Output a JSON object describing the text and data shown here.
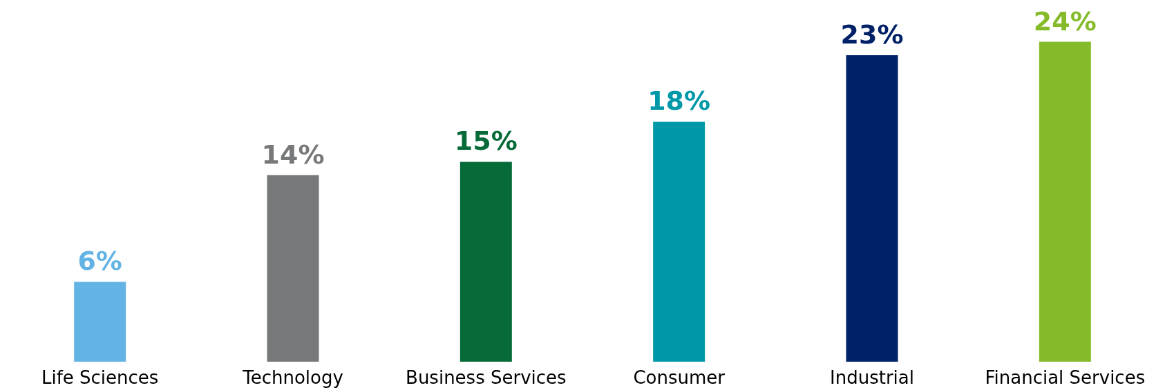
{
  "chart_data": {
    "type": "bar",
    "categories": [
      "Life Sciences",
      "Technology",
      "Business Services",
      "Consumer",
      "Industrial",
      "Financial Services"
    ],
    "values": [
      6,
      14,
      15,
      18,
      23,
      24
    ],
    "colors": [
      "#63b4e4",
      "#76787a",
      "#066b38",
      "#0098a9",
      "#002067",
      "#85bb2a"
    ],
    "value_labels": [
      "6%",
      "14%",
      "15%",
      "18%",
      "23%",
      "24%"
    ]
  }
}
